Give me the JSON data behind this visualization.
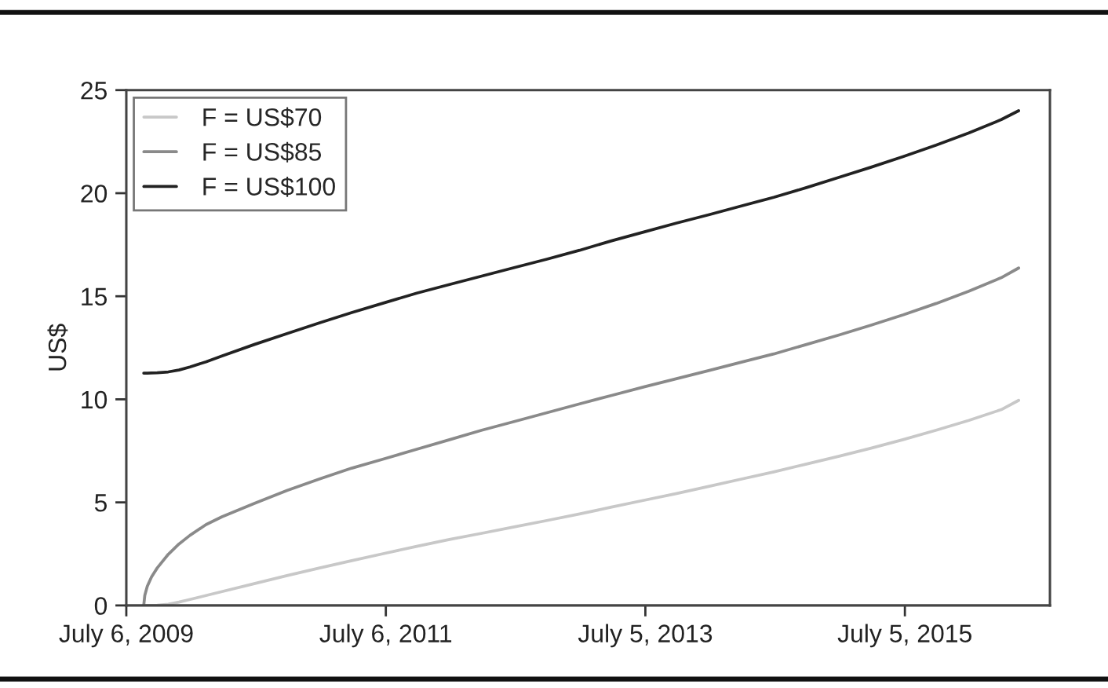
{
  "chart_data": {
    "type": "line",
    "ylabel": "US$",
    "x": [
      "2009-08-24",
      "2009-08-27",
      "2009-09-03",
      "2009-09-15",
      "2009-10-01",
      "2009-11-01",
      "2009-12-01",
      "2010-01-01",
      "2010-02-15",
      "2010-04-01",
      "2010-07-01",
      "2010-10-01",
      "2011-01-01",
      "2011-04-01",
      "2011-07-01",
      "2011-10-01",
      "2012-01-01",
      "2012-04-01",
      "2012-07-01",
      "2012-10-01",
      "2013-01-01",
      "2013-04-01",
      "2013-07-01",
      "2013-10-01",
      "2014-01-01",
      "2014-04-01",
      "2014-07-01",
      "2014-10-01",
      "2015-01-01",
      "2015-04-01",
      "2015-07-01",
      "2015-10-01",
      "2016-01-01",
      "2016-04-01",
      "2016-05-20"
    ],
    "series": [
      {
        "name": "F = US$70",
        "color": "#c8c8c8",
        "values": [
          0,
          0,
          0,
          0,
          0.01,
          0.06,
          0.16,
          0.29,
          0.48,
          0.67,
          1.06,
          1.45,
          1.82,
          2.17,
          2.52,
          2.87,
          3.2,
          3.5,
          3.81,
          4.12,
          4.44,
          4.77,
          5.1,
          5.43,
          5.78,
          6.13,
          6.48,
          6.86,
          7.24,
          7.63,
          8.05,
          8.5,
          8.98,
          9.5,
          9.95
        ]
      },
      {
        "name": "F = US$85",
        "color": "#8a8a8a",
        "values": [
          0,
          0.49,
          0.93,
          1.39,
          1.82,
          2.48,
          2.98,
          3.4,
          3.92,
          4.3,
          4.95,
          5.58,
          6.14,
          6.66,
          7.11,
          7.58,
          8.04,
          8.5,
          8.92,
          9.35,
          9.78,
          10.19,
          10.6,
          11.0,
          11.4,
          11.8,
          12.2,
          12.66,
          13.12,
          13.6,
          14.1,
          14.65,
          15.25,
          15.9,
          16.37
        ]
      },
      {
        "name": "F = US$100",
        "color": "#222222",
        "values": [
          11.27,
          11.27,
          11.27,
          11.28,
          11.29,
          11.33,
          11.42,
          11.57,
          11.82,
          12.1,
          12.66,
          13.19,
          13.71,
          14.21,
          14.68,
          15.15,
          15.57,
          15.98,
          16.39,
          16.8,
          17.23,
          17.69,
          18.12,
          18.55,
          18.96,
          19.38,
          19.8,
          20.27,
          20.77,
          21.26,
          21.78,
          22.33,
          22.92,
          23.57,
          24.0
        ]
      }
    ],
    "xlim": [
      "2009-07-06",
      "2016-08-16"
    ],
    "xticks": [
      {
        "value": "2009-07-06",
        "label": "July 6, 2009"
      },
      {
        "value": "2011-07-06",
        "label": "July 6, 2011"
      },
      {
        "value": "2013-07-05",
        "label": "July 5, 2013"
      },
      {
        "value": "2015-07-05",
        "label": "July 5, 2015"
      }
    ],
    "ylim": [
      0,
      25
    ],
    "yticks": [
      0,
      5,
      10,
      15,
      20,
      25
    ],
    "grid": false,
    "legend": "top left",
    "line_style": "solid",
    "marker": "none"
  }
}
